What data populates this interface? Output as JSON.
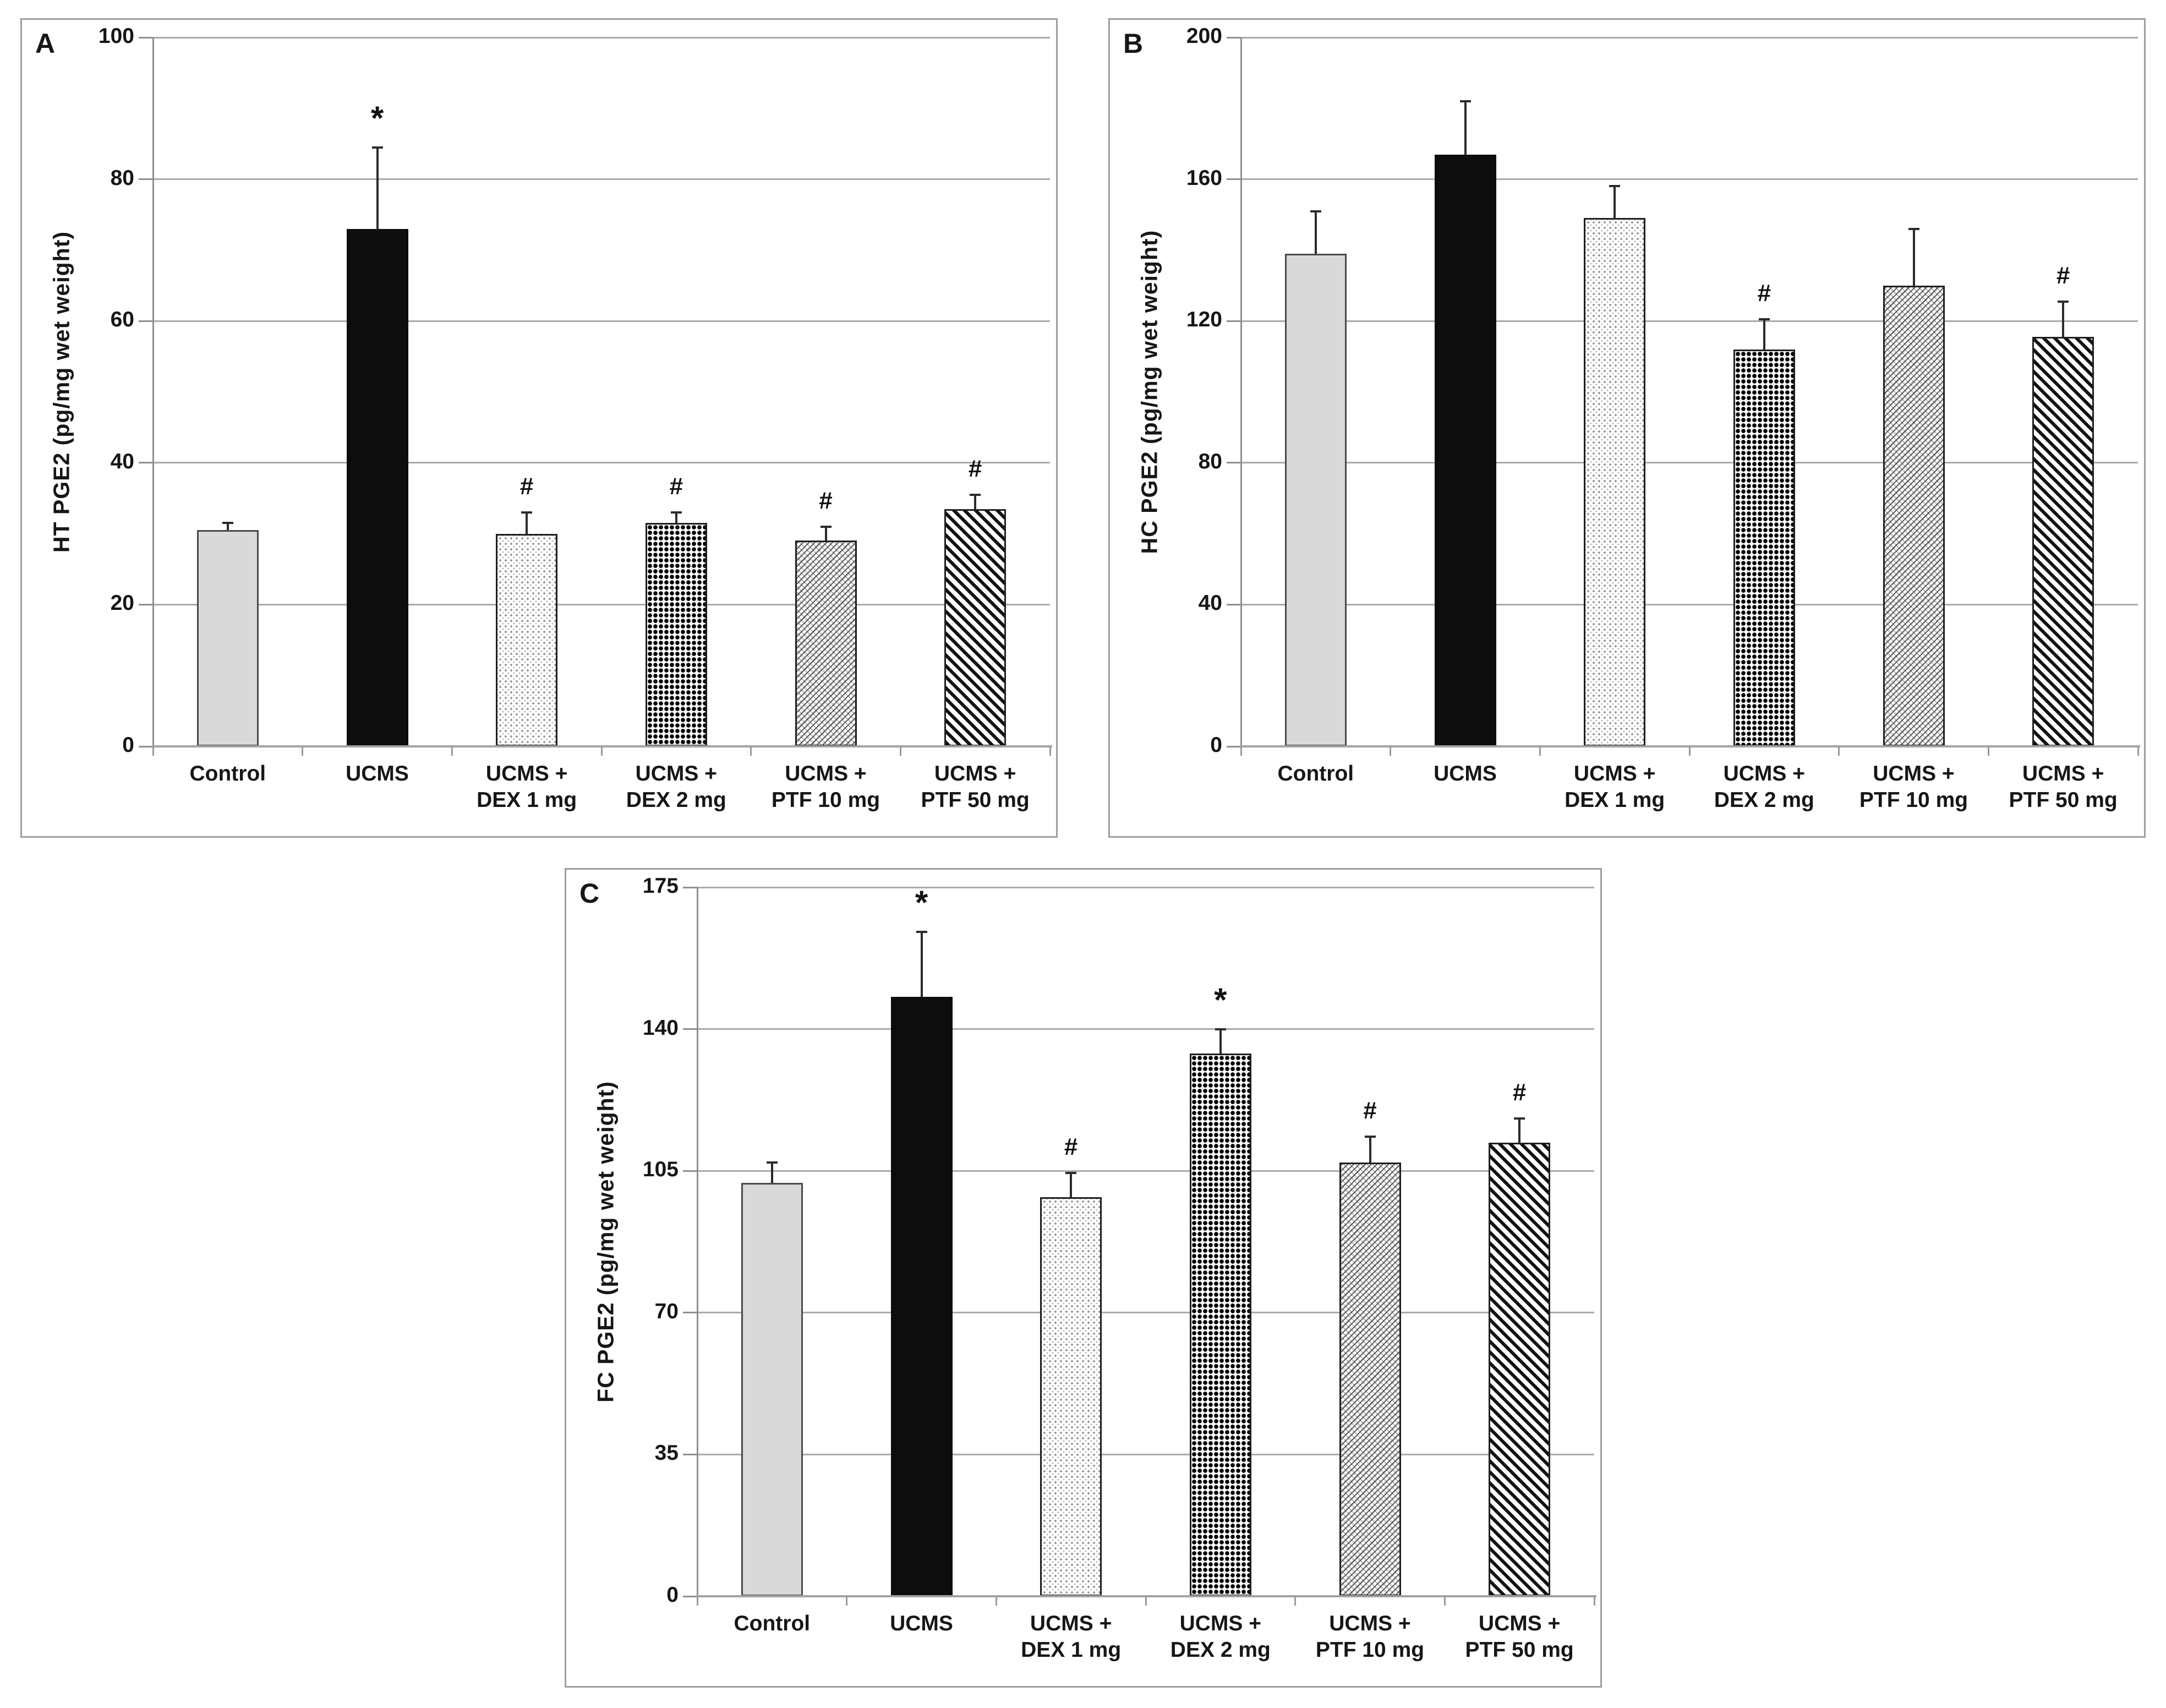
{
  "styles": {
    "bar_gray": "#d9d9d9",
    "bar_black": "#0d0d0d",
    "grid_color": "#aaaaaa",
    "axis_color": "#a3a3a3",
    "panel_border": "#9e9e9e",
    "text_color": "#111111"
  },
  "chart_data": [
    {
      "type": "bar",
      "panel_label": "A",
      "ylabel": "HT PGE2 (pg/mg wet weight)",
      "xlabel": "",
      "ylim": [
        0,
        100
      ],
      "yticks": [
        0,
        20,
        40,
        60,
        80,
        100
      ],
      "grid": "horizontal",
      "legend": "none",
      "categories": [
        "Control",
        "UCMS",
        "UCMS + DEX 1 mg",
        "UCMS + DEX 2 mg",
        "UCMS + PTF 10 mg",
        "UCMS + PTF 50 mg"
      ],
      "category_lines": [
        [
          "Control"
        ],
        [
          "UCMS"
        ],
        [
          "UCMS +",
          "DEX 1 mg"
        ],
        [
          "UCMS +",
          "DEX 2 mg"
        ],
        [
          "UCMS +",
          "PTF 10 mg"
        ],
        [
          "UCMS +",
          "PTF 50 mg"
        ]
      ],
      "values": [
        30.5,
        73,
        30,
        31.5,
        29,
        33.5
      ],
      "errors_plus": [
        1,
        11.5,
        3,
        1.5,
        2,
        2
      ],
      "annotations": [
        "",
        "*",
        "#",
        "#",
        "#",
        "#"
      ],
      "bar_styles": [
        "solid-gray",
        "solid-black",
        "dots",
        "checker",
        "weave",
        "stripes"
      ]
    },
    {
      "type": "bar",
      "panel_label": "B",
      "ylabel": "HC PGE2 (pg/mg wet weight)",
      "xlabel": "",
      "ylim": [
        0,
        200
      ],
      "yticks": [
        0,
        40,
        80,
        120,
        160,
        200
      ],
      "grid": "horizontal",
      "legend": "none",
      "categories": [
        "Control",
        "UCMS",
        "UCMS + DEX 1 mg",
        "UCMS + DEX 2 mg",
        "UCMS + PTF 10 mg",
        "UCMS + PTF 50 mg"
      ],
      "category_lines": [
        [
          "Control"
        ],
        [
          "UCMS"
        ],
        [
          "UCMS +",
          "DEX 1 mg"
        ],
        [
          "UCMS +",
          "DEX 2 mg"
        ],
        [
          "UCMS +",
          "PTF 10 mg"
        ],
        [
          "UCMS +",
          "PTF 50 mg"
        ]
      ],
      "values": [
        139,
        167,
        149,
        112,
        130,
        115.5
      ],
      "errors_plus": [
        12,
        15,
        9,
        8.5,
        16,
        10
      ],
      "annotations": [
        "",
        "",
        "",
        "#",
        "",
        "#"
      ],
      "bar_styles": [
        "solid-gray",
        "solid-black",
        "dots",
        "checker",
        "weave",
        "stripes"
      ]
    },
    {
      "type": "bar",
      "panel_label": "C",
      "ylabel": "FC PGE2 (pg/mg wet weight)",
      "xlabel": "",
      "ylim": [
        0,
        175
      ],
      "yticks": [
        0,
        35,
        70,
        105,
        140,
        175
      ],
      "grid": "horizontal",
      "legend": "none",
      "categories": [
        "Control",
        "UCMS",
        "UCMS + DEX 1 mg",
        "UCMS + DEX 2 mg",
        "UCMS + PTF 10 mg",
        "UCMS + PTF 50 mg"
      ],
      "category_lines": [
        [
          "Control"
        ],
        [
          "UCMS"
        ],
        [
          "UCMS +",
          "DEX 1 mg"
        ],
        [
          "UCMS +",
          "DEX 2 mg"
        ],
        [
          "UCMS +",
          "PTF 10 mg"
        ],
        [
          "UCMS +",
          "PTF 50 mg"
        ]
      ],
      "values": [
        102,
        148,
        98.5,
        134,
        107,
        112
      ],
      "errors_plus": [
        5,
        16,
        6,
        6,
        6.5,
        6
      ],
      "annotations": [
        "",
        "*",
        "#",
        "*",
        "#",
        "#"
      ],
      "bar_styles": [
        "solid-gray",
        "solid-black",
        "dots",
        "checker",
        "weave",
        "stripes"
      ]
    }
  ]
}
